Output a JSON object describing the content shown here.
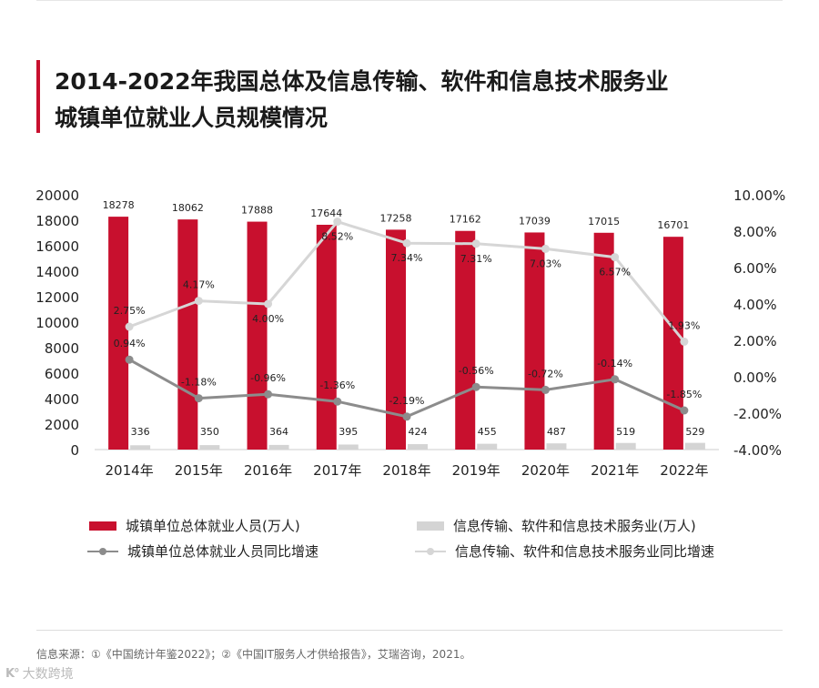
{
  "title_lines": [
    "2014-2022年我国总体及信息传输、软件和信息技术服务业",
    "城镇单位就业人员规模情况"
  ],
  "chart_data": {
    "type": "bar+line",
    "categories": [
      "2014年",
      "2015年",
      "2016年",
      "2017年",
      "2018年",
      "2019年",
      "2020年",
      "2021年",
      "2022年"
    ],
    "series": [
      {
        "name": "城镇单位总体就业人员(万人)",
        "type": "bar",
        "axis": "left",
        "color": "#c8102e",
        "values": [
          18278,
          18062,
          17888,
          17644,
          17258,
          17162,
          17039,
          17015,
          16701
        ],
        "labels": [
          "18278",
          "18062",
          "17888",
          "17644",
          "17258",
          "17162",
          "17039",
          "17015",
          "16701"
        ]
      },
      {
        "name": "信息传输、软件和信息技术服务业(万人)",
        "type": "bar",
        "axis": "left",
        "color": "#d4d4d4",
        "values": [
          336,
          350,
          364,
          395,
          424,
          455,
          487,
          519,
          529
        ],
        "labels": [
          "336",
          "350",
          "364",
          "395",
          "424",
          "455",
          "487",
          "519",
          "529"
        ]
      },
      {
        "name": "城镇单位总体就业人员同比增速",
        "type": "line",
        "axis": "right",
        "color": "#8c8c8c",
        "values": [
          0.94,
          -1.18,
          -0.96,
          -1.36,
          -2.19,
          -0.56,
          -0.72,
          -0.14,
          -1.85
        ],
        "labels": [
          "0.94%",
          "-1.18%",
          "-0.96%",
          "-1.36%",
          "-2.19%",
          "-0.56%",
          "-0.72%",
          "-0.14%",
          "-1.85%"
        ]
      },
      {
        "name": "信息传输、软件和信息技术服务业同比增速",
        "type": "line",
        "axis": "right",
        "color": "#d6d6d6",
        "values": [
          2.75,
          4.17,
          4.0,
          8.52,
          7.34,
          7.31,
          7.03,
          6.57,
          1.93
        ],
        "labels": [
          "2.75%",
          "4.17%",
          "4.00%",
          "8.52%",
          "7.34%",
          "7.31%",
          "7.03%",
          "6.57%",
          "1.93%"
        ]
      }
    ],
    "left_axis": {
      "min": 0,
      "max": 20000,
      "ticks": [
        0,
        2000,
        4000,
        6000,
        8000,
        10000,
        12000,
        14000,
        16000,
        18000,
        20000
      ],
      "tick_labels": [
        "0",
        "2000",
        "4000",
        "6000",
        "8000",
        "10000",
        "12000",
        "14000",
        "16000",
        "18000",
        "20000"
      ]
    },
    "right_axis": {
      "min": -4,
      "max": 10,
      "ticks": [
        -4,
        -2,
        0,
        2,
        4,
        6,
        8,
        10
      ],
      "tick_labels": [
        "-4.00%",
        "-2.00%",
        "0.00%",
        "2.00%",
        "4.00%",
        "6.00%",
        "8.00%",
        "10.00%"
      ]
    },
    "grid": false,
    "legend_position": "bottom"
  },
  "source_text": "信息来源：①《中国统计年鉴2022》；②《中国IT服务人才供给报告》，艾瑞咨询，2021。",
  "watermark": {
    "logo": "K°",
    "text": "大数跨境"
  }
}
